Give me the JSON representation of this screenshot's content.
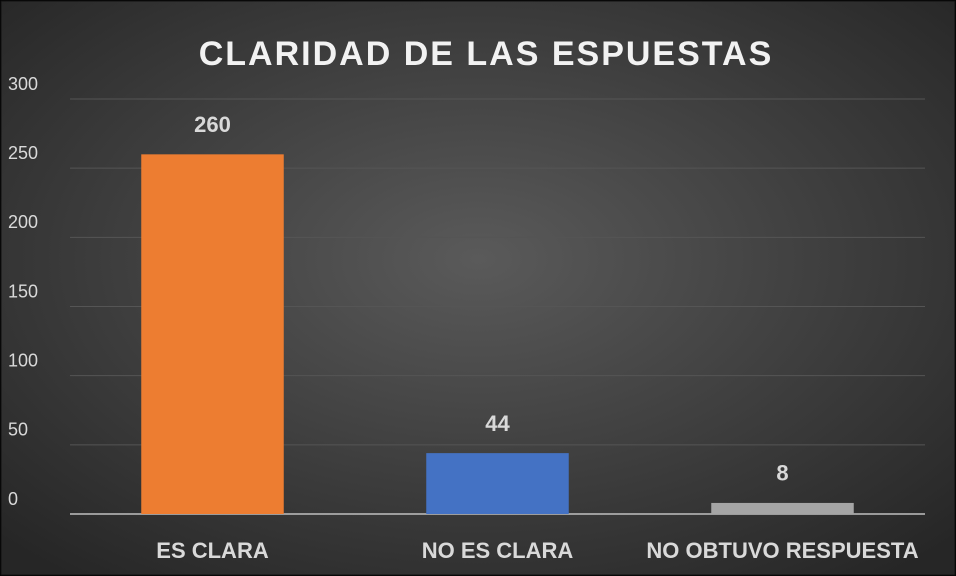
{
  "chart_data": {
    "type": "bar",
    "title": "CLARIDAD DE LAS ESPUESTAS",
    "categories": [
      "ES CLARA",
      "NO ES CLARA",
      "NO OBTUVO RESPUESTA"
    ],
    "values": [
      260,
      44,
      8
    ],
    "colors": [
      "#ed7d31",
      "#4472c4",
      "#a5a5a5"
    ],
    "ylim": [
      0,
      300
    ],
    "yticks": [
      0,
      50,
      100,
      150,
      200,
      250,
      300
    ],
    "grid": true
  }
}
